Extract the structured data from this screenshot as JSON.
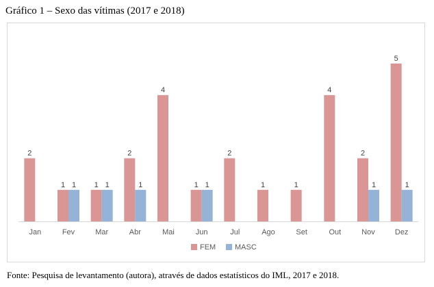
{
  "figure": {
    "title": "Gráfico 1 – Sexo das vítimas (2017 e 2018)",
    "source": "Fonte: Pesquisa de levantamento (autora), através de dados estatísticos do IML, 2017 e 2018."
  },
  "chart_data": {
    "type": "bar",
    "title": "",
    "xlabel": "",
    "ylabel": "",
    "ylim": [
      0,
      5
    ],
    "grid": false,
    "legend_position": "bottom",
    "categories": [
      "Jan",
      "Fev",
      "Mar",
      "Abr",
      "Mai",
      "Jun",
      "Jul",
      "Ago",
      "Set",
      "Out",
      "Nov",
      "Dez"
    ],
    "series": [
      {
        "name": "FEM",
        "color": "#d99694",
        "values": [
          2,
          1,
          1,
          2,
          4,
          1,
          2,
          1,
          1,
          4,
          2,
          5
        ]
      },
      {
        "name": "MASC",
        "color": "#95b3d7",
        "values": [
          null,
          1,
          1,
          1,
          null,
          1,
          null,
          null,
          null,
          null,
          1,
          1
        ]
      }
    ]
  }
}
